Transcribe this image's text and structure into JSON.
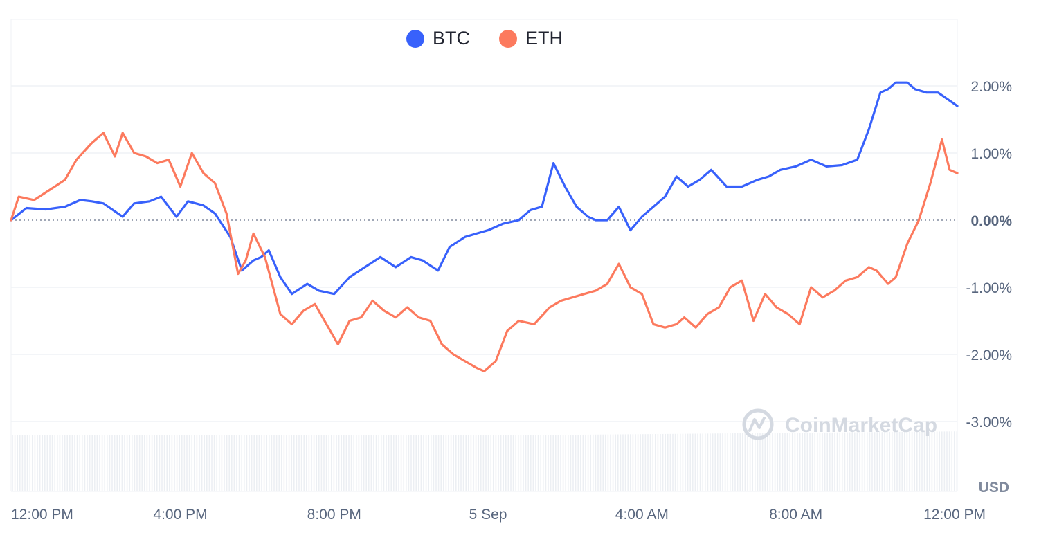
{
  "legend": {
    "items": [
      {
        "label": "BTC",
        "color": "#3861fb"
      },
      {
        "label": "ETH",
        "color": "#fc7a5e"
      }
    ]
  },
  "watermark": "CoinMarketCap",
  "unit_label": "USD",
  "chart_data": {
    "type": "line",
    "title": "",
    "xlabel": "",
    "ylabel": "",
    "ylim": [
      -4.0,
      3.0
    ],
    "y_ticks": [
      2.0,
      1.0,
      0.0,
      -1.0,
      -2.0,
      -3.0
    ],
    "y_tick_labels": [
      "2.00%",
      "1.00%",
      "0.00%",
      "-1.00%",
      "-2.00%",
      "-3.00%"
    ],
    "x_range": [
      11.6,
      36.2
    ],
    "x_ticks": [
      12,
      16,
      20,
      24,
      28,
      32,
      36
    ],
    "x_tick_labels": [
      "12:00 PM",
      "4:00 PM",
      "8:00 PM",
      "5 Sep",
      "4:00 AM",
      "8:00 AM",
      "12:00 PM"
    ],
    "baseline": 0.0,
    "grid": true,
    "legend_position": "top-center",
    "series": [
      {
        "name": "BTC",
        "color": "#3861fb",
        "x": [
          11.6,
          12.0,
          12.5,
          13.0,
          13.4,
          13.7,
          14.0,
          14.5,
          14.8,
          15.2,
          15.5,
          15.9,
          16.2,
          16.6,
          16.9,
          17.3,
          17.6,
          17.9,
          18.1,
          18.3,
          18.6,
          18.9,
          19.3,
          19.6,
          20.0,
          20.4,
          20.8,
          21.2,
          21.6,
          22.0,
          22.3,
          22.7,
          23.0,
          23.4,
          23.7,
          24.0,
          24.4,
          24.8,
          25.1,
          25.4,
          25.7,
          26.0,
          26.3,
          26.6,
          26.8,
          27.1,
          27.4,
          27.7,
          28.0,
          28.3,
          28.6,
          28.9,
          29.2,
          29.5,
          29.8,
          30.2,
          30.6,
          31.0,
          31.3,
          31.6,
          32.0,
          32.4,
          32.8,
          33.2,
          33.6,
          33.9,
          34.2,
          34.4,
          34.6,
          34.9,
          35.1,
          35.4,
          35.7,
          36.0,
          36.2
        ],
        "values": [
          0.0,
          0.18,
          0.16,
          0.2,
          0.3,
          0.28,
          0.25,
          0.05,
          0.25,
          0.28,
          0.35,
          0.05,
          0.28,
          0.22,
          0.1,
          -0.25,
          -0.75,
          -0.6,
          -0.55,
          -0.45,
          -0.85,
          -1.1,
          -0.95,
          -1.05,
          -1.1,
          -0.85,
          -0.7,
          -0.55,
          -0.7,
          -0.55,
          -0.6,
          -0.75,
          -0.4,
          -0.25,
          -0.2,
          -0.15,
          -0.05,
          0.0,
          0.15,
          0.2,
          0.85,
          0.5,
          0.2,
          0.05,
          0.0,
          0.0,
          0.2,
          -0.15,
          0.05,
          0.2,
          0.35,
          0.65,
          0.5,
          0.6,
          0.75,
          0.5,
          0.5,
          0.6,
          0.65,
          0.75,
          0.8,
          0.9,
          0.8,
          0.82,
          0.9,
          1.35,
          1.9,
          1.95,
          2.05,
          2.05,
          1.95,
          1.9,
          1.9,
          1.78,
          1.7
        ]
      },
      {
        "name": "ETH",
        "color": "#fc7a5e",
        "x": [
          11.6,
          11.8,
          12.2,
          12.6,
          13.0,
          13.3,
          13.7,
          14.0,
          14.3,
          14.5,
          14.8,
          15.1,
          15.4,
          15.7,
          16.0,
          16.3,
          16.6,
          16.9,
          17.2,
          17.5,
          17.7,
          17.9,
          18.2,
          18.6,
          18.9,
          19.2,
          19.5,
          19.8,
          20.1,
          20.4,
          20.7,
          21.0,
          21.3,
          21.6,
          21.9,
          22.2,
          22.5,
          22.8,
          23.1,
          23.4,
          23.7,
          23.9,
          24.2,
          24.5,
          24.8,
          25.2,
          25.6,
          25.9,
          26.2,
          26.5,
          26.8,
          27.1,
          27.4,
          27.7,
          28.0,
          28.3,
          28.6,
          28.9,
          29.1,
          29.4,
          29.7,
          30.0,
          30.3,
          30.6,
          30.9,
          31.2,
          31.5,
          31.8,
          32.1,
          32.4,
          32.7,
          33.0,
          33.3,
          33.6,
          33.9,
          34.1,
          34.4,
          34.6,
          34.9,
          35.2,
          35.5,
          35.8,
          36.0,
          36.2
        ],
        "values": [
          0.0,
          0.35,
          0.3,
          0.45,
          0.6,
          0.9,
          1.15,
          1.3,
          0.95,
          1.3,
          1.0,
          0.95,
          0.85,
          0.9,
          0.5,
          1.0,
          0.7,
          0.55,
          0.1,
          -0.8,
          -0.6,
          -0.2,
          -0.55,
          -1.4,
          -1.55,
          -1.35,
          -1.25,
          -1.55,
          -1.85,
          -1.5,
          -1.45,
          -1.2,
          -1.35,
          -1.45,
          -1.3,
          -1.45,
          -1.5,
          -1.85,
          -2.0,
          -2.1,
          -2.2,
          -2.25,
          -2.1,
          -1.65,
          -1.5,
          -1.55,
          -1.3,
          -1.2,
          -1.15,
          -1.1,
          -1.05,
          -0.95,
          -0.65,
          -1.0,
          -1.1,
          -1.55,
          -1.6,
          -1.55,
          -1.45,
          -1.6,
          -1.4,
          -1.3,
          -1.0,
          -0.9,
          -1.5,
          -1.1,
          -1.3,
          -1.4,
          -1.55,
          -1.0,
          -1.15,
          -1.05,
          -0.9,
          -0.85,
          -0.7,
          -0.75,
          -0.95,
          -0.85,
          -0.35,
          0.0,
          0.55,
          1.2,
          0.75,
          0.7
        ]
      }
    ]
  }
}
